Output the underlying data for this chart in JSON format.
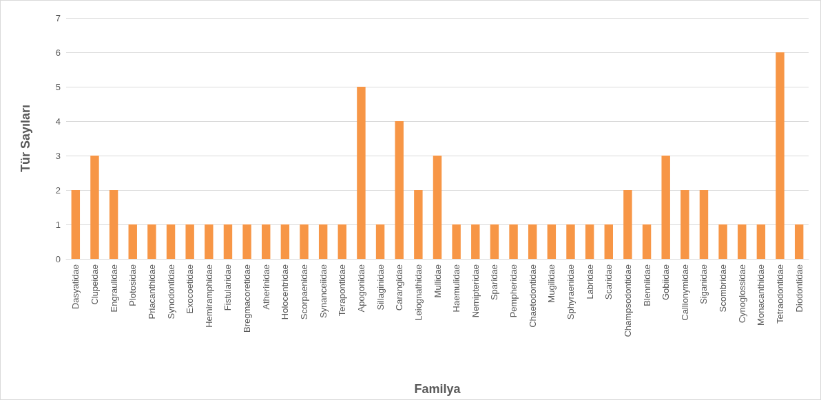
{
  "chart_data": {
    "type": "bar",
    "xlabel": "Familya",
    "ylabel": "Tür Sayıları",
    "categories": [
      "Dasyatidae",
      "Clupeidae",
      "Engraulidae",
      "Plotosidae",
      "Priacanthidae",
      "Synodontidae",
      "Exocoetidae",
      "Hemiramphidae",
      "Fistularidae",
      "Bregmacoretidae",
      "Atherinidae",
      "Holocentridae",
      "Scorpaenidae",
      "Synanceiidae",
      "Terapontidae",
      "Apogonidae",
      "Sillaginidae",
      "Carangidae",
      "Leiognathidae",
      "Mullidae",
      "Haemulidae",
      "Nemipteridae",
      "Sparidae",
      "Pempheridae",
      "Chaetodontidae",
      "Mugilidae",
      "Sphyraenidae",
      "Labridae",
      "Scaridae",
      "Champsodontidae",
      "Blenniidae",
      "Gobiidae",
      "Callionymidae",
      "Siganidae",
      "Scombridae",
      "Cynoglossidae",
      "Monacanthidae",
      "Tetraodontidae",
      "Diodontidae"
    ],
    "values": [
      2,
      3,
      2,
      1,
      1,
      1,
      1,
      1,
      1,
      1,
      1,
      1,
      1,
      1,
      1,
      5,
      1,
      4,
      2,
      3,
      1,
      1,
      1,
      1,
      1,
      1,
      1,
      1,
      1,
      2,
      1,
      3,
      2,
      2,
      1,
      1,
      1,
      6,
      1
    ],
    "color": "#f79646",
    "ylim": [
      0,
      7
    ],
    "yticks": [
      0,
      1,
      2,
      3,
      4,
      5,
      6,
      7
    ],
    "grid": "y"
  }
}
